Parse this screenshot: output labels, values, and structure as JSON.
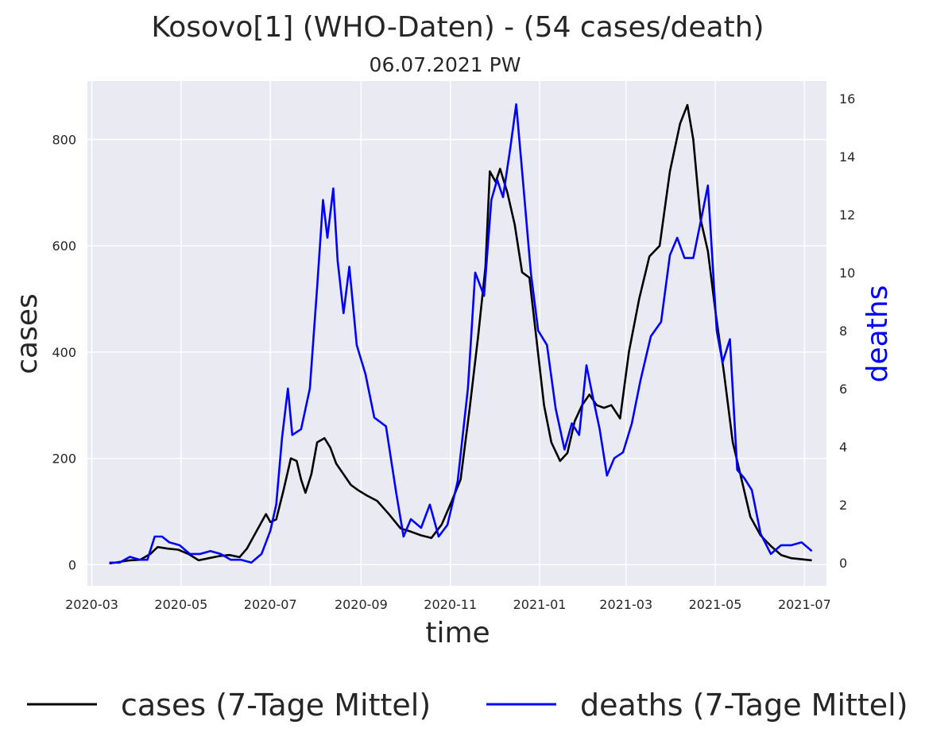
{
  "chart_data": {
    "type": "line",
    "title": "Kosovo[1] (WHO-Daten) - (54 cases/death)",
    "subtitle": "06.07.2021 PW",
    "xlabel": "time",
    "ylabel_left": "cases",
    "ylabel_right": "deaths",
    "x_ticks": [
      "2020-03",
      "2020-05",
      "2020-07",
      "2020-09",
      "2020-11",
      "2021-01",
      "2021-03",
      "2021-05",
      "2021-07"
    ],
    "y_left_ticks": [
      0,
      200,
      400,
      600,
      800
    ],
    "y_right_ticks": [
      0,
      2,
      4,
      6,
      8,
      10,
      12,
      14,
      16
    ],
    "y_left_range": [
      -40,
      910
    ],
    "y_right_range": [
      -0.8,
      16.6
    ],
    "x_range": [
      "2020-02-27",
      "2021-07-16"
    ],
    "grid": true,
    "legend_position": "bottom",
    "colors": {
      "cases": "#000000",
      "deaths": "#0000ff",
      "background": "#eaeaf2",
      "grid": "#ffffff",
      "right_axis_label": "#0000ff"
    },
    "series": [
      {
        "name": "cases (7-Tage Mittel)",
        "axis": "left",
        "color": "#000000",
        "points": [
          [
            "2020-03-13",
            2
          ],
          [
            "2020-03-20",
            5
          ],
          [
            "2020-03-27",
            8
          ],
          [
            "2020-04-03",
            9
          ],
          [
            "2020-04-10",
            20
          ],
          [
            "2020-04-15",
            33
          ],
          [
            "2020-04-22",
            30
          ],
          [
            "2020-04-29",
            28
          ],
          [
            "2020-05-06",
            20
          ],
          [
            "2020-05-13",
            8
          ],
          [
            "2020-05-20",
            12
          ],
          [
            "2020-05-27",
            16
          ],
          [
            "2020-06-03",
            18
          ],
          [
            "2020-06-10",
            14
          ],
          [
            "2020-06-15",
            30
          ],
          [
            "2020-06-20",
            55
          ],
          [
            "2020-06-25",
            80
          ],
          [
            "2020-06-28",
            95
          ],
          [
            "2020-07-01",
            80
          ],
          [
            "2020-07-05",
            85
          ],
          [
            "2020-07-10",
            140
          ],
          [
            "2020-07-15",
            200
          ],
          [
            "2020-07-19",
            195
          ],
          [
            "2020-07-22",
            160
          ],
          [
            "2020-07-25",
            135
          ],
          [
            "2020-07-29",
            170
          ],
          [
            "2020-08-02",
            230
          ],
          [
            "2020-08-07",
            238
          ],
          [
            "2020-08-11",
            220
          ],
          [
            "2020-08-15",
            190
          ],
          [
            "2020-08-20",
            170
          ],
          [
            "2020-08-25",
            150
          ],
          [
            "2020-08-30",
            140
          ],
          [
            "2020-09-05",
            130
          ],
          [
            "2020-09-12",
            120
          ],
          [
            "2020-09-20",
            95
          ],
          [
            "2020-09-28",
            68
          ],
          [
            "2020-10-05",
            62
          ],
          [
            "2020-10-12",
            55
          ],
          [
            "2020-10-19",
            50
          ],
          [
            "2020-10-26",
            75
          ],
          [
            "2020-11-02",
            120
          ],
          [
            "2020-11-08",
            160
          ],
          [
            "2020-11-14",
            290
          ],
          [
            "2020-11-20",
            430
          ],
          [
            "2020-11-25",
            560
          ],
          [
            "2020-11-28",
            740
          ],
          [
            "2020-12-02",
            720
          ],
          [
            "2020-12-05",
            745
          ],
          [
            "2020-12-10",
            700
          ],
          [
            "2020-12-15",
            640
          ],
          [
            "2020-12-20",
            550
          ],
          [
            "2020-12-25",
            540
          ],
          [
            "2020-12-30",
            420
          ],
          [
            "2021-01-04",
            300
          ],
          [
            "2021-01-09",
            230
          ],
          [
            "2021-01-15",
            195
          ],
          [
            "2021-01-20",
            210
          ],
          [
            "2021-01-25",
            270
          ],
          [
            "2021-01-30",
            300
          ],
          [
            "2021-02-04",
            320
          ],
          [
            "2021-02-09",
            300
          ],
          [
            "2021-02-14",
            295
          ],
          [
            "2021-02-19",
            300
          ],
          [
            "2021-02-25",
            275
          ],
          [
            "2021-03-03",
            400
          ],
          [
            "2021-03-10",
            500
          ],
          [
            "2021-03-17",
            580
          ],
          [
            "2021-03-24",
            600
          ],
          [
            "2021-03-31",
            740
          ],
          [
            "2021-04-07",
            830
          ],
          [
            "2021-04-12",
            865
          ],
          [
            "2021-04-16",
            800
          ],
          [
            "2021-04-21",
            650
          ],
          [
            "2021-04-26",
            590
          ],
          [
            "2021-05-01",
            480
          ],
          [
            "2021-05-07",
            360
          ],
          [
            "2021-05-13",
            230
          ],
          [
            "2021-05-19",
            160
          ],
          [
            "2021-05-25",
            90
          ],
          [
            "2021-06-01",
            55
          ],
          [
            "2021-06-08",
            35
          ],
          [
            "2021-06-15",
            18
          ],
          [
            "2021-06-22",
            12
          ],
          [
            "2021-06-29",
            10
          ],
          [
            "2021-07-06",
            8
          ]
        ]
      },
      {
        "name": "deaths (7-Tage Mittel)",
        "axis": "right",
        "color": "#0000ff",
        "points": [
          [
            "2020-03-13",
            0
          ],
          [
            "2020-03-20",
            0
          ],
          [
            "2020-03-27",
            0.2
          ],
          [
            "2020-04-03",
            0.1
          ],
          [
            "2020-04-08",
            0.1
          ],
          [
            "2020-04-13",
            0.9
          ],
          [
            "2020-04-18",
            0.9
          ],
          [
            "2020-04-23",
            0.7
          ],
          [
            "2020-04-30",
            0.6
          ],
          [
            "2020-05-07",
            0.3
          ],
          [
            "2020-05-14",
            0.3
          ],
          [
            "2020-05-21",
            0.4
          ],
          [
            "2020-05-28",
            0.3
          ],
          [
            "2020-06-04",
            0.1
          ],
          [
            "2020-06-11",
            0.1
          ],
          [
            "2020-06-18",
            0
          ],
          [
            "2020-06-25",
            0.3
          ],
          [
            "2020-07-01",
            1.1
          ],
          [
            "2020-07-05",
            2
          ],
          [
            "2020-07-09",
            4.3
          ],
          [
            "2020-07-13",
            6
          ],
          [
            "2020-07-16",
            4.4
          ],
          [
            "2020-07-22",
            4.6
          ],
          [
            "2020-07-28",
            6
          ],
          [
            "2020-08-02",
            9.5
          ],
          [
            "2020-08-06",
            12.5
          ],
          [
            "2020-08-09",
            11.2
          ],
          [
            "2020-08-13",
            12.9
          ],
          [
            "2020-08-16",
            10.4
          ],
          [
            "2020-08-20",
            8.6
          ],
          [
            "2020-08-24",
            10.2
          ],
          [
            "2020-08-29",
            7.5
          ],
          [
            "2020-09-04",
            6.5
          ],
          [
            "2020-09-10",
            5
          ],
          [
            "2020-09-18",
            4.7
          ],
          [
            "2020-09-25",
            2.4
          ],
          [
            "2020-09-30",
            0.9
          ],
          [
            "2020-10-05",
            1.5
          ],
          [
            "2020-10-12",
            1.2
          ],
          [
            "2020-10-18",
            2
          ],
          [
            "2020-10-24",
            0.9
          ],
          [
            "2020-10-30",
            1.3
          ],
          [
            "2020-11-06",
            2.8
          ],
          [
            "2020-11-13",
            6
          ],
          [
            "2020-11-18",
            10
          ],
          [
            "2020-11-24",
            9.2
          ],
          [
            "2020-11-29",
            12.5
          ],
          [
            "2020-12-03",
            13.2
          ],
          [
            "2020-12-07",
            12.6
          ],
          [
            "2020-12-12",
            14.3
          ],
          [
            "2020-12-16",
            15.8
          ],
          [
            "2020-12-20",
            13.5
          ],
          [
            "2020-12-26",
            10
          ],
          [
            "2020-12-31",
            8
          ],
          [
            "2021-01-06",
            7.5
          ],
          [
            "2021-01-12",
            5.3
          ],
          [
            "2021-01-18",
            3.9
          ],
          [
            "2021-01-23",
            4.8
          ],
          [
            "2021-01-28",
            4.4
          ],
          [
            "2021-02-02",
            6.8
          ],
          [
            "2021-02-06",
            5.8
          ],
          [
            "2021-02-11",
            4.6
          ],
          [
            "2021-02-16",
            3
          ],
          [
            "2021-02-21",
            3.6
          ],
          [
            "2021-02-27",
            3.8
          ],
          [
            "2021-03-05",
            4.8
          ],
          [
            "2021-03-11",
            6.3
          ],
          [
            "2021-03-18",
            7.8
          ],
          [
            "2021-03-25",
            8.3
          ],
          [
            "2021-03-31",
            10.6
          ],
          [
            "2021-04-05",
            11.2
          ],
          [
            "2021-04-10",
            10.5
          ],
          [
            "2021-04-16",
            10.5
          ],
          [
            "2021-04-22",
            12
          ],
          [
            "2021-04-26",
            13
          ],
          [
            "2021-05-02",
            8
          ],
          [
            "2021-05-06",
            6.9
          ],
          [
            "2021-05-11",
            7.7
          ],
          [
            "2021-05-16",
            3.2
          ],
          [
            "2021-05-21",
            2.9
          ],
          [
            "2021-05-26",
            2.5
          ],
          [
            "2021-06-01",
            1
          ],
          [
            "2021-06-08",
            0.3
          ],
          [
            "2021-06-15",
            0.6
          ],
          [
            "2021-06-22",
            0.6
          ],
          [
            "2021-06-29",
            0.7
          ],
          [
            "2021-07-06",
            0.4
          ]
        ]
      }
    ]
  }
}
